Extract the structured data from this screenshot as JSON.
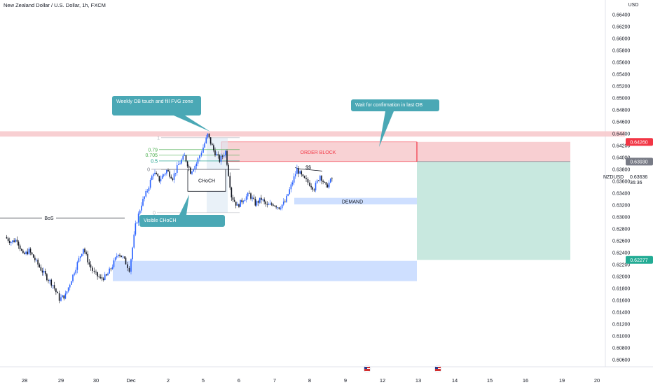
{
  "header": {
    "title": "New Zealand Dollar / U.S. Dollar, 1h, FXCM",
    "currency": "USD"
  },
  "chart_data": {
    "type": "candlestick",
    "title": "New Zealand Dollar / U.S. Dollar, 1h, FXCM",
    "symbol": "NZDUSD",
    "ylabel": "USD",
    "ylim": [
      0.6055,
      0.6647
    ],
    "y_ticks": [
      "0.66400",
      "0.66200",
      "0.66000",
      "0.65800",
      "0.65600",
      "0.65400",
      "0.65200",
      "0.65000",
      "0.64800",
      "0.64600",
      "0.64400",
      "0.64200",
      "0.64000",
      "0.63800",
      "0.63600",
      "0.63400",
      "0.63200",
      "0.63000",
      "0.62800",
      "0.62600",
      "0.62400",
      "0.62200",
      "0.62000",
      "0.61800",
      "0.61600",
      "0.61400",
      "0.61200",
      "0.61000",
      "0.60800",
      "0.60600"
    ],
    "x_ticks": [
      "28",
      "29",
      "30",
      "Dec",
      "2",
      "5",
      "6",
      "7",
      "8",
      "9",
      "12",
      "13",
      "14",
      "15",
      "16",
      "19",
      "20"
    ],
    "price_tags": [
      {
        "label": "0.64260",
        "value": 0.6426,
        "color": "#f23645"
      },
      {
        "label": "0.63930",
        "value": 0.6393,
        "color": "#787b86"
      },
      {
        "label": "0.62277",
        "value": 0.62277,
        "color": "#22ab94"
      }
    ],
    "last_price": {
      "label": "0.63636",
      "countdown": "36:36",
      "value": 0.63636
    },
    "price_path": [
      {
        "x": "Nov 27 12:00",
        "y": 0.6266
      },
      {
        "x": "Nov 27 16:00",
        "y": 0.6258
      },
      {
        "x": "Nov 27 20:00",
        "y": 0.6262
      },
      {
        "x": "Nov 28 00:00",
        "y": 0.6235
      },
      {
        "x": "Nov 28 04:00",
        "y": 0.6243
      },
      {
        "x": "Nov 28 08:00",
        "y": 0.6228
      },
      {
        "x": "Nov 28 12:00",
        "y": 0.6212
      },
      {
        "x": "Nov 28 16:00",
        "y": 0.6198
      },
      {
        "x": "Nov 28 20:00",
        "y": 0.6186
      },
      {
        "x": "Nov 29 00:00",
        "y": 0.6162
      },
      {
        "x": "Nov 29 04:00",
        "y": 0.6168
      },
      {
        "x": "Nov 29 08:00",
        "y": 0.6195
      },
      {
        "x": "Nov 29 12:00",
        "y": 0.6222
      },
      {
        "x": "Nov 29 16:00",
        "y": 0.6248
      },
      {
        "x": "Nov 29 20:00",
        "y": 0.622
      },
      {
        "x": "Nov 30 00:00",
        "y": 0.6205
      },
      {
        "x": "Nov 30 04:00",
        "y": 0.6196
      },
      {
        "x": "Nov 30 08:00",
        "y": 0.62
      },
      {
        "x": "Nov 30 12:00",
        "y": 0.6218
      },
      {
        "x": "Nov 30 16:00",
        "y": 0.624
      },
      {
        "x": "Nov 30 20:00",
        "y": 0.6228
      },
      {
        "x": "Dec 1 00:00",
        "y": 0.6212
      },
      {
        "x": "Dec 1 04:00",
        "y": 0.6285
      },
      {
        "x": "Dec 1 08:00",
        "y": 0.6322
      },
      {
        "x": "Dec 1 12:00",
        "y": 0.6345
      },
      {
        "x": "Dec 1 16:00",
        "y": 0.6375
      },
      {
        "x": "Dec 1 20:00",
        "y": 0.6362
      },
      {
        "x": "Dec 2 00:00",
        "y": 0.6378
      },
      {
        "x": "Dec 2 04:00",
        "y": 0.6366
      },
      {
        "x": "Dec 2 08:00",
        "y": 0.6388
      },
      {
        "x": "Dec 2 12:00",
        "y": 0.6402
      },
      {
        "x": "Dec 2 16:00",
        "y": 0.6376
      },
      {
        "x": "Dec 2 20:00",
        "y": 0.639
      },
      {
        "x": "Dec 5 00:00",
        "y": 0.641
      },
      {
        "x": "Dec 5 04:00",
        "y": 0.6438
      },
      {
        "x": "Dec 5 08:00",
        "y": 0.6412
      },
      {
        "x": "Dec 5 12:00",
        "y": 0.6395
      },
      {
        "x": "Dec 5 16:00",
        "y": 0.641
      },
      {
        "x": "Dec 5 20:00",
        "y": 0.6335
      },
      {
        "x": "Dec 6 00:00",
        "y": 0.6318
      },
      {
        "x": "Dec 6 04:00",
        "y": 0.633
      },
      {
        "x": "Dec 6 08:00",
        "y": 0.6338
      },
      {
        "x": "Dec 6 12:00",
        "y": 0.6322
      },
      {
        "x": "Dec 6 16:00",
        "y": 0.633
      },
      {
        "x": "Dec 6 20:00",
        "y": 0.6318
      },
      {
        "x": "Dec 7 00:00",
        "y": 0.6322
      },
      {
        "x": "Dec 7 04:00",
        "y": 0.6316
      },
      {
        "x": "Dec 7 08:00",
        "y": 0.6325
      },
      {
        "x": "Dec 7 12:00",
        "y": 0.6352
      },
      {
        "x": "Dec 7 16:00",
        "y": 0.638
      },
      {
        "x": "Dec 7 20:00",
        "y": 0.6365
      },
      {
        "x": "Dec 8 00:00",
        "y": 0.6358
      },
      {
        "x": "Dec 8 04:00",
        "y": 0.6348
      },
      {
        "x": "Dec 8 08:00",
        "y": 0.637
      },
      {
        "x": "Dec 8 12:00",
        "y": 0.635
      },
      {
        "x": "Dec 8 16:00",
        "y": 0.6364
      }
    ],
    "zones": [
      {
        "name": "ORDER BLOCK",
        "from": 0.6393,
        "to": 0.6426,
        "color": "#f7cacd"
      },
      {
        "name": "DEMAND",
        "from": 0.6321,
        "to": 0.6332,
        "color": "#c9dbff"
      },
      {
        "name": "",
        "from": 0.6192,
        "to": 0.6226,
        "color": "#c9dbff"
      },
      {
        "name": "",
        "from": 0.6435,
        "to": 0.6444,
        "color": "#f7cacd"
      }
    ],
    "fib_levels": [
      {
        "label": "0.79",
        "value": 0.6413
      },
      {
        "label": "0.705",
        "value": 0.6404
      },
      {
        "label": "0.5",
        "value": 0.6394
      },
      {
        "label": "0",
        "value": 0.638
      },
      {
        "label": "1",
        "value": 0.6433
      },
      {
        "label": "0",
        "value": 0.6307
      }
    ],
    "annotations": [
      {
        "text": "Weekly OB touch and fill FVG zone"
      },
      {
        "text": "Wait for confirmation in last OB"
      },
      {
        "text": "Visible CHoCH"
      },
      {
        "text": "CHoCH"
      },
      {
        "text": "BoS"
      },
      {
        "text": "$$"
      },
      {
        "text": "ORDER BLOCK"
      },
      {
        "text": "DEMAND"
      }
    ],
    "colors": {
      "up": "#2962ff",
      "down": "#131722",
      "callout": "#4aa8b5"
    },
    "grid": false
  }
}
